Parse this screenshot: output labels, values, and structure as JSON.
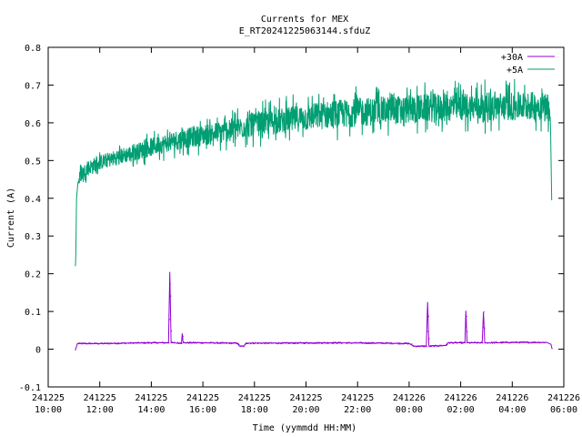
{
  "chart_data": {
    "type": "line",
    "title": "Currents for MEX",
    "subtitle": "E_RT20241225063144.sfduZ",
    "xlabel": "Time (yymmdd HH:MM)",
    "ylabel": "Current (A)",
    "xlim": [
      "241225 10:00",
      "241226 06:00"
    ],
    "ylim": [
      -0.1,
      0.8
    ],
    "grid": false,
    "legend_position": "top-right",
    "y_ticks": [
      "-0.1",
      "0",
      "0.1",
      "0.2",
      "0.3",
      "0.4",
      "0.5",
      "0.6",
      "0.7",
      "0.8"
    ],
    "x_ticks": [
      {
        "date": "241225",
        "time": "10:00"
      },
      {
        "date": "241225",
        "time": "12:00"
      },
      {
        "date": "241225",
        "time": "14:00"
      },
      {
        "date": "241225",
        "time": "16:00"
      },
      {
        "date": "241225",
        "time": "18:00"
      },
      {
        "date": "241225",
        "time": "20:00"
      },
      {
        "date": "241225",
        "time": "22:00"
      },
      {
        "date": "241226",
        "time": "00:00"
      },
      {
        "date": "241226",
        "time": "02:00"
      },
      {
        "date": "241226",
        "time": "04:00"
      },
      {
        "date": "241226",
        "time": "06:00"
      }
    ],
    "series": [
      {
        "name": "+30A",
        "color": "#9400d3",
        "points": [
          [
            "241225 11:03",
            -0.003
          ],
          [
            "241225 11:08",
            0.015
          ],
          [
            "241225 12:00",
            0.015
          ],
          [
            "241225 13:00",
            0.016
          ],
          [
            "241225 14:00",
            0.017
          ],
          [
            "241225 14:40",
            0.017
          ],
          [
            "241225 14:43",
            0.205
          ],
          [
            "241225 14:46",
            0.017
          ],
          [
            "241225 15:10",
            0.016
          ],
          [
            "241225 15:12",
            0.042
          ],
          [
            "241225 15:14",
            0.017
          ],
          [
            "241225 16:00",
            0.017
          ],
          [
            "241225 17:00",
            0.016
          ],
          [
            "241225 17:20",
            0.016
          ],
          [
            "241225 17:25",
            0.008
          ],
          [
            "241225 17:35",
            0.008
          ],
          [
            "241225 17:40",
            0.016
          ],
          [
            "241225 19:00",
            0.016
          ],
          [
            "241225 21:00",
            0.017
          ],
          [
            "241225 23:00",
            0.016
          ],
          [
            "241225 23:59",
            0.015
          ],
          [
            "241226 00:05",
            0.012
          ],
          [
            "241226 00:10",
            0.008
          ],
          [
            "241226 00:40",
            0.008
          ],
          [
            "241226 00:43",
            0.125
          ],
          [
            "241226 00:46",
            0.008
          ],
          [
            "241226 01:25",
            0.01
          ],
          [
            "241226 01:30",
            0.017
          ],
          [
            "241226 02:10",
            0.017
          ],
          [
            "241226 02:12",
            0.102
          ],
          [
            "241226 02:15",
            0.017
          ],
          [
            "241226 02:50",
            0.017
          ],
          [
            "241226 02:53",
            0.098
          ],
          [
            "241226 02:56",
            0.017
          ],
          [
            "241226 04:00",
            0.018
          ],
          [
            "241226 05:20",
            0.018
          ],
          [
            "241226 05:30",
            0.013
          ],
          [
            "241226 05:33",
            0.0
          ]
        ]
      },
      {
        "name": "+5A",
        "color": "#009e73",
        "points": [
          [
            "241225 11:03",
            0.22
          ],
          [
            "241225 11:04",
            0.23
          ],
          [
            "241225 11:06",
            0.4
          ],
          [
            "241225 11:09",
            0.44
          ],
          [
            "241225 11:15",
            0.46
          ],
          [
            "241225 11:30",
            0.48
          ],
          [
            "241225 12:00",
            0.495
          ],
          [
            "241225 13:00",
            0.515
          ],
          [
            "241225 14:00",
            0.535
          ],
          [
            "241225 15:00",
            0.555
          ],
          [
            "241225 16:00",
            0.567
          ],
          [
            "241225 17:00",
            0.58
          ],
          [
            "241225 18:00",
            0.595
          ],
          [
            "241225 19:00",
            0.605
          ],
          [
            "241225 20:00",
            0.614
          ],
          [
            "241225 21:00",
            0.622
          ],
          [
            "241225 22:00",
            0.628
          ],
          [
            "241225 23:00",
            0.632
          ],
          [
            "241226 00:00",
            0.636
          ],
          [
            "241226 01:00",
            0.64
          ],
          [
            "241226 02:00",
            0.642
          ],
          [
            "241226 03:00",
            0.643
          ],
          [
            "241226 04:00",
            0.644
          ],
          [
            "241226 05:00",
            0.645
          ],
          [
            "241226 05:25",
            0.645
          ],
          [
            "241226 05:29",
            0.6
          ],
          [
            "241226 05:32",
            0.38
          ]
        ]
      }
    ]
  }
}
